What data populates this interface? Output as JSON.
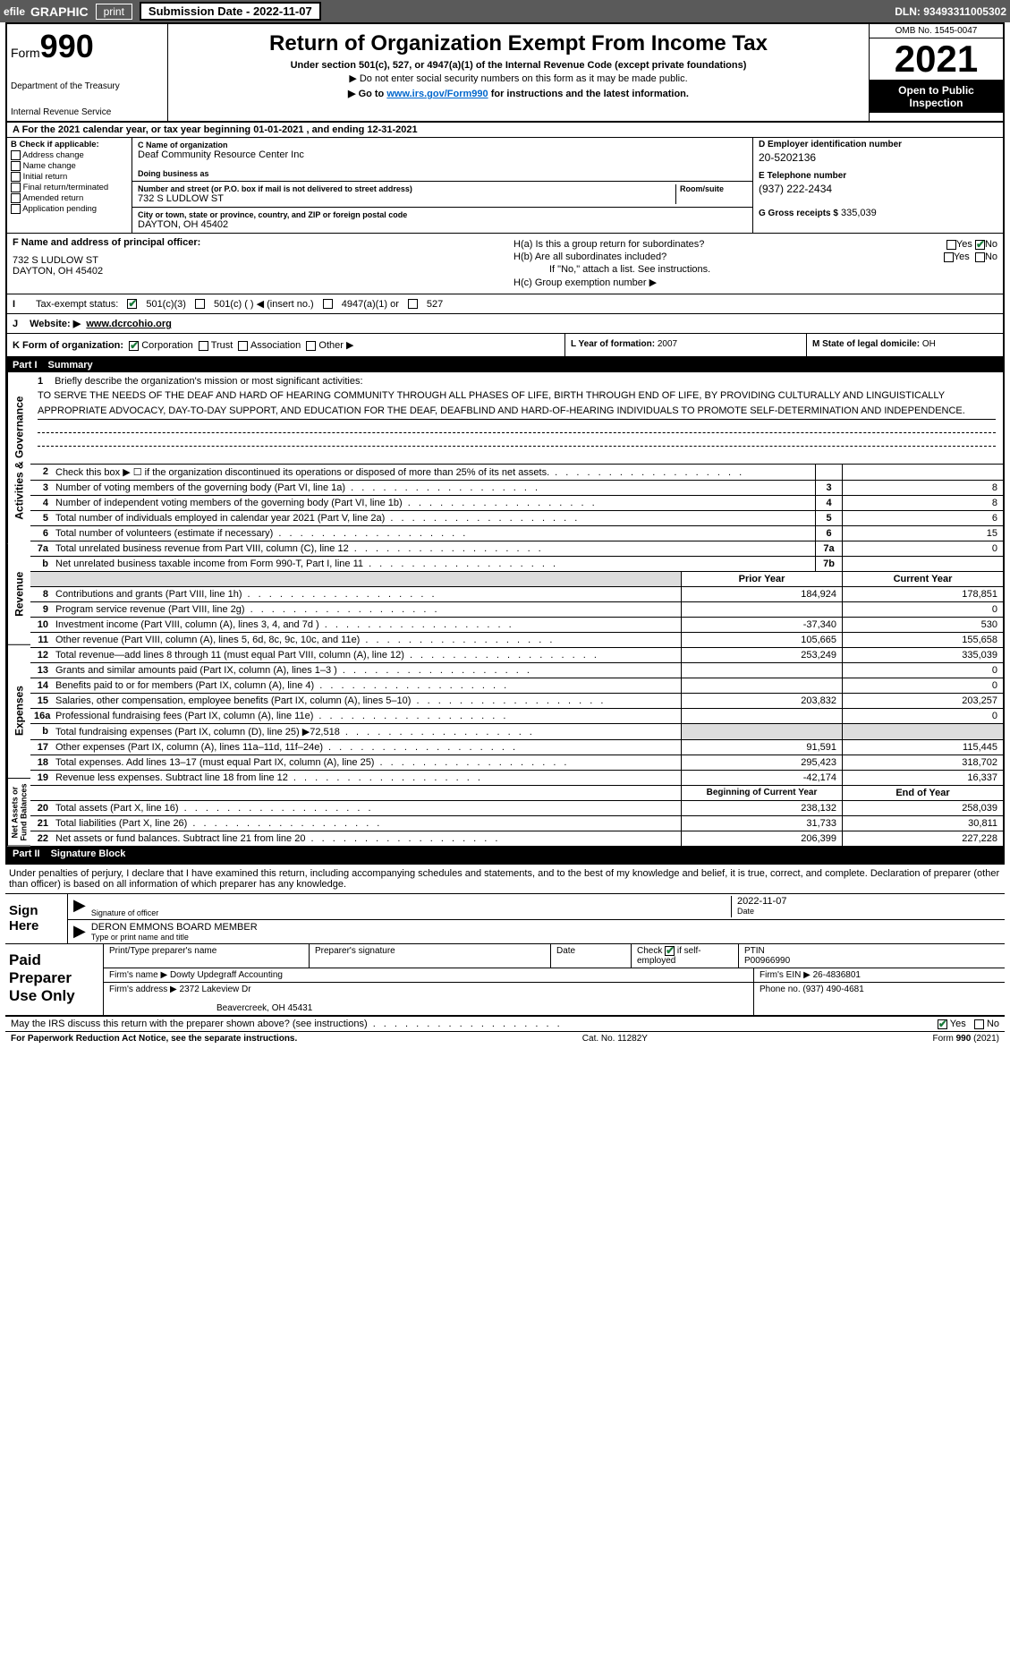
{
  "top": {
    "efile": "efile",
    "graphic": "GRAPHIC",
    "print": "print",
    "submission": "Submission Date - 2022-11-07",
    "dln": "DLN: 93493311005302"
  },
  "header": {
    "form_prefix": "Form",
    "form_num": "990",
    "dept": "Department of the Treasury",
    "irs": "Internal Revenue Service",
    "title": "Return of Organization Exempt From Income Tax",
    "sub1": "Under section 501(c), 527, or 4947(a)(1) of the Internal Revenue Code (except private foundations)",
    "sub2": "▶ Do not enter social security numbers on this form as it may be made public.",
    "sub3_pre": "▶ Go to ",
    "sub3_link": "www.irs.gov/Form990",
    "sub3_post": " for instructions and the latest information.",
    "omb": "OMB No. 1545-0047",
    "year": "2021",
    "open": "Open to Public Inspection"
  },
  "period": {
    "a_text": "A For the 2021 calendar year, or tax year beginning 01-01-2021    , and ending 12-31-2021"
  },
  "colB": {
    "label": "B Check if applicable:",
    "items": [
      "Address change",
      "Name change",
      "Initial return",
      "Final return/terminated",
      "Amended return",
      "Application pending"
    ]
  },
  "colC": {
    "name_label": "C Name of organization",
    "name": "Deaf Community Resource Center Inc",
    "dba_label": "Doing business as",
    "dba": "",
    "street_label": "Number and street (or P.O. box if mail is not delivered to street address)",
    "room_label": "Room/suite",
    "street": "732 S LUDLOW ST",
    "city_label": "City or town, state or province, country, and ZIP or foreign postal code",
    "city": "DAYTON, OH  45402"
  },
  "colD": {
    "ein_label": "D Employer identification number",
    "ein": "20-5202136",
    "tel_label": "E Telephone number",
    "tel": "(937) 222-2434",
    "gross_label": "G Gross receipts $",
    "gross": "335,039"
  },
  "rowF": {
    "label": "F Name and address of principal officer:",
    "addr1": "732 S LUDLOW ST",
    "addr2": "DAYTON, OH  45402"
  },
  "rowH": {
    "ha": "H(a)  Is this a group return for subordinates?",
    "ha_yes": "Yes",
    "ha_no": "No",
    "hb": "H(b)  Are all subordinates included?",
    "hb_yes": "Yes",
    "hb_no": "No",
    "hb_note": "If \"No,\" attach a list. See instructions.",
    "hc": "H(c)  Group exemption number ▶"
  },
  "rowI": {
    "label": "Tax-exempt status:",
    "o1": "501(c)(3)",
    "o2": "501(c) (  ) ◀ (insert no.)",
    "o3": "4947(a)(1) or",
    "o4": "527"
  },
  "rowJ": {
    "label": "J",
    "website_label": "Website: ▶",
    "website": "www.dcrcohio.org"
  },
  "rowK": {
    "label": "K Form of organization:",
    "o1": "Corporation",
    "o2": "Trust",
    "o3": "Association",
    "o4": "Other ▶",
    "L_label": "L Year of formation:",
    "L_val": "2007",
    "M_label": "M State of legal domicile:",
    "M_val": "OH"
  },
  "part1": {
    "part": "Part I",
    "title": "Summary"
  },
  "mission": {
    "num": "1",
    "prompt": "Briefly describe the organization's mission or most significant activities:",
    "text": "TO SERVE THE NEEDS OF THE DEAF AND HARD OF HEARING COMMUNITY THROUGH ALL PHASES OF LIFE, BIRTH THROUGH END OF LIFE, BY PROVIDING CULTURALLY AND LINGUISTICALLY APPROPRIATE ADVOCACY, DAY-TO-DAY SUPPORT, AND EDUCATION FOR THE DEAF, DEAFBLIND AND HARD-OF-HEARING INDIVIDUALS TO PROMOTE SELF-DETERMINATION AND INDEPENDENCE."
  },
  "governance_rows": [
    {
      "n": "2",
      "desc": "Check this box ▶ ☐  if the organization discontinued its operations or disposed of more than 25% of its net assets.",
      "box": "",
      "val": ""
    },
    {
      "n": "3",
      "desc": "Number of voting members of the governing body (Part VI, line 1a)",
      "box": "3",
      "val": "8"
    },
    {
      "n": "4",
      "desc": "Number of independent voting members of the governing body (Part VI, line 1b)",
      "box": "4",
      "val": "8"
    },
    {
      "n": "5",
      "desc": "Total number of individuals employed in calendar year 2021 (Part V, line 2a)",
      "box": "5",
      "val": "6"
    },
    {
      "n": "6",
      "desc": "Total number of volunteers (estimate if necessary)",
      "box": "6",
      "val": "15"
    },
    {
      "n": "7a",
      "desc": "Total unrelated business revenue from Part VIII, column (C), line 12",
      "box": "7a",
      "val": "0"
    },
    {
      "n": "b",
      "desc": "Net unrelated business taxable income from Form 990-T, Part I, line 11",
      "box": "7b",
      "val": ""
    }
  ],
  "revenue_hdr": {
    "prior": "Prior Year",
    "curr": "Current Year"
  },
  "revenue_rows": [
    {
      "n": "8",
      "desc": "Contributions and grants (Part VIII, line 1h)",
      "prior": "184,924",
      "curr": "178,851"
    },
    {
      "n": "9",
      "desc": "Program service revenue (Part VIII, line 2g)",
      "prior": "",
      "curr": "0"
    },
    {
      "n": "10",
      "desc": "Investment income (Part VIII, column (A), lines 3, 4, and 7d )",
      "prior": "-37,340",
      "curr": "530"
    },
    {
      "n": "11",
      "desc": "Other revenue (Part VIII, column (A), lines 5, 6d, 8c, 9c, 10c, and 11e)",
      "prior": "105,665",
      "curr": "155,658"
    },
    {
      "n": "12",
      "desc": "Total revenue—add lines 8 through 11 (must equal Part VIII, column (A), line 12)",
      "prior": "253,249",
      "curr": "335,039"
    }
  ],
  "expense_rows": [
    {
      "n": "13",
      "desc": "Grants and similar amounts paid (Part IX, column (A), lines 1–3 )",
      "prior": "",
      "curr": "0"
    },
    {
      "n": "14",
      "desc": "Benefits paid to or for members (Part IX, column (A), line 4)",
      "prior": "",
      "curr": "0"
    },
    {
      "n": "15",
      "desc": "Salaries, other compensation, employee benefits (Part IX, column (A), lines 5–10)",
      "prior": "203,832",
      "curr": "203,257"
    },
    {
      "n": "16a",
      "desc": "Professional fundraising fees (Part IX, column (A), line 11e)",
      "prior": "",
      "curr": "0"
    },
    {
      "n": "b",
      "desc": "Total fundraising expenses (Part IX, column (D), line 25) ▶72,518",
      "prior": "SHADE",
      "curr": "SHADE"
    },
    {
      "n": "17",
      "desc": "Other expenses (Part IX, column (A), lines 11a–11d, 11f–24e)",
      "prior": "91,591",
      "curr": "115,445"
    },
    {
      "n": "18",
      "desc": "Total expenses. Add lines 13–17 (must equal Part IX, column (A), line 25)",
      "prior": "295,423",
      "curr": "318,702"
    },
    {
      "n": "19",
      "desc": "Revenue less expenses. Subtract line 18 from line 12",
      "prior": "-42,174",
      "curr": "16,337"
    }
  ],
  "net_hdr": {
    "prior": "Beginning of Current Year",
    "curr": "End of Year"
  },
  "net_rows": [
    {
      "n": "20",
      "desc": "Total assets (Part X, line 16)",
      "prior": "238,132",
      "curr": "258,039"
    },
    {
      "n": "21",
      "desc": "Total liabilities (Part X, line 26)",
      "prior": "31,733",
      "curr": "30,811"
    },
    {
      "n": "22",
      "desc": "Net assets or fund balances. Subtract line 21 from line 20",
      "prior": "206,399",
      "curr": "227,228"
    }
  ],
  "vtabs": {
    "gov": "Activities & Governance",
    "rev": "Revenue",
    "exp": "Expenses",
    "net": "Net Assets or Fund Balances"
  },
  "part2": {
    "part": "Part II",
    "title": "Signature Block"
  },
  "sig": {
    "penalty": "Under penalties of perjury, I declare that I have examined this return, including accompanying schedules and statements, and to the best of my knowledge and belief, it is true, correct, and complete. Declaration of preparer (other than officer) is based on all information of which preparer has any knowledge.",
    "sign_here": "Sign Here",
    "sig_officer": "Signature of officer",
    "date": "Date",
    "date_val": "2022-11-07",
    "name": "DERON EMMONS  BOARD MEMBER",
    "name_label": "Type or print name and title"
  },
  "paid": {
    "label": "Paid Preparer Use Only",
    "r1": {
      "c1": "Print/Type preparer's name",
      "c2": "Preparer's signature",
      "c3": "Date",
      "c4": "Check ☑ if self-employed",
      "c5_lbl": "PTIN",
      "c5": "P00966990"
    },
    "r2": {
      "c1": "Firm's name    ▶",
      "c1v": "Dowty Updegraff Accounting",
      "c2": "Firm's EIN ▶",
      "c2v": "26-4836801"
    },
    "r3": {
      "c1": "Firm's address ▶",
      "c1v": "2372 Lakeview Dr",
      "c1v2": "Beavercreek, OH  45431",
      "c2": "Phone no.",
      "c2v": "(937) 490-4681"
    }
  },
  "discuss": {
    "q": "May the IRS discuss this return with the preparer shown above? (see instructions)",
    "yes": "Yes",
    "no": "No"
  },
  "footer": {
    "left": "For Paperwork Reduction Act Notice, see the separate instructions.",
    "mid": "Cat. No. 11282Y",
    "right": "Form 990 (2021)"
  }
}
